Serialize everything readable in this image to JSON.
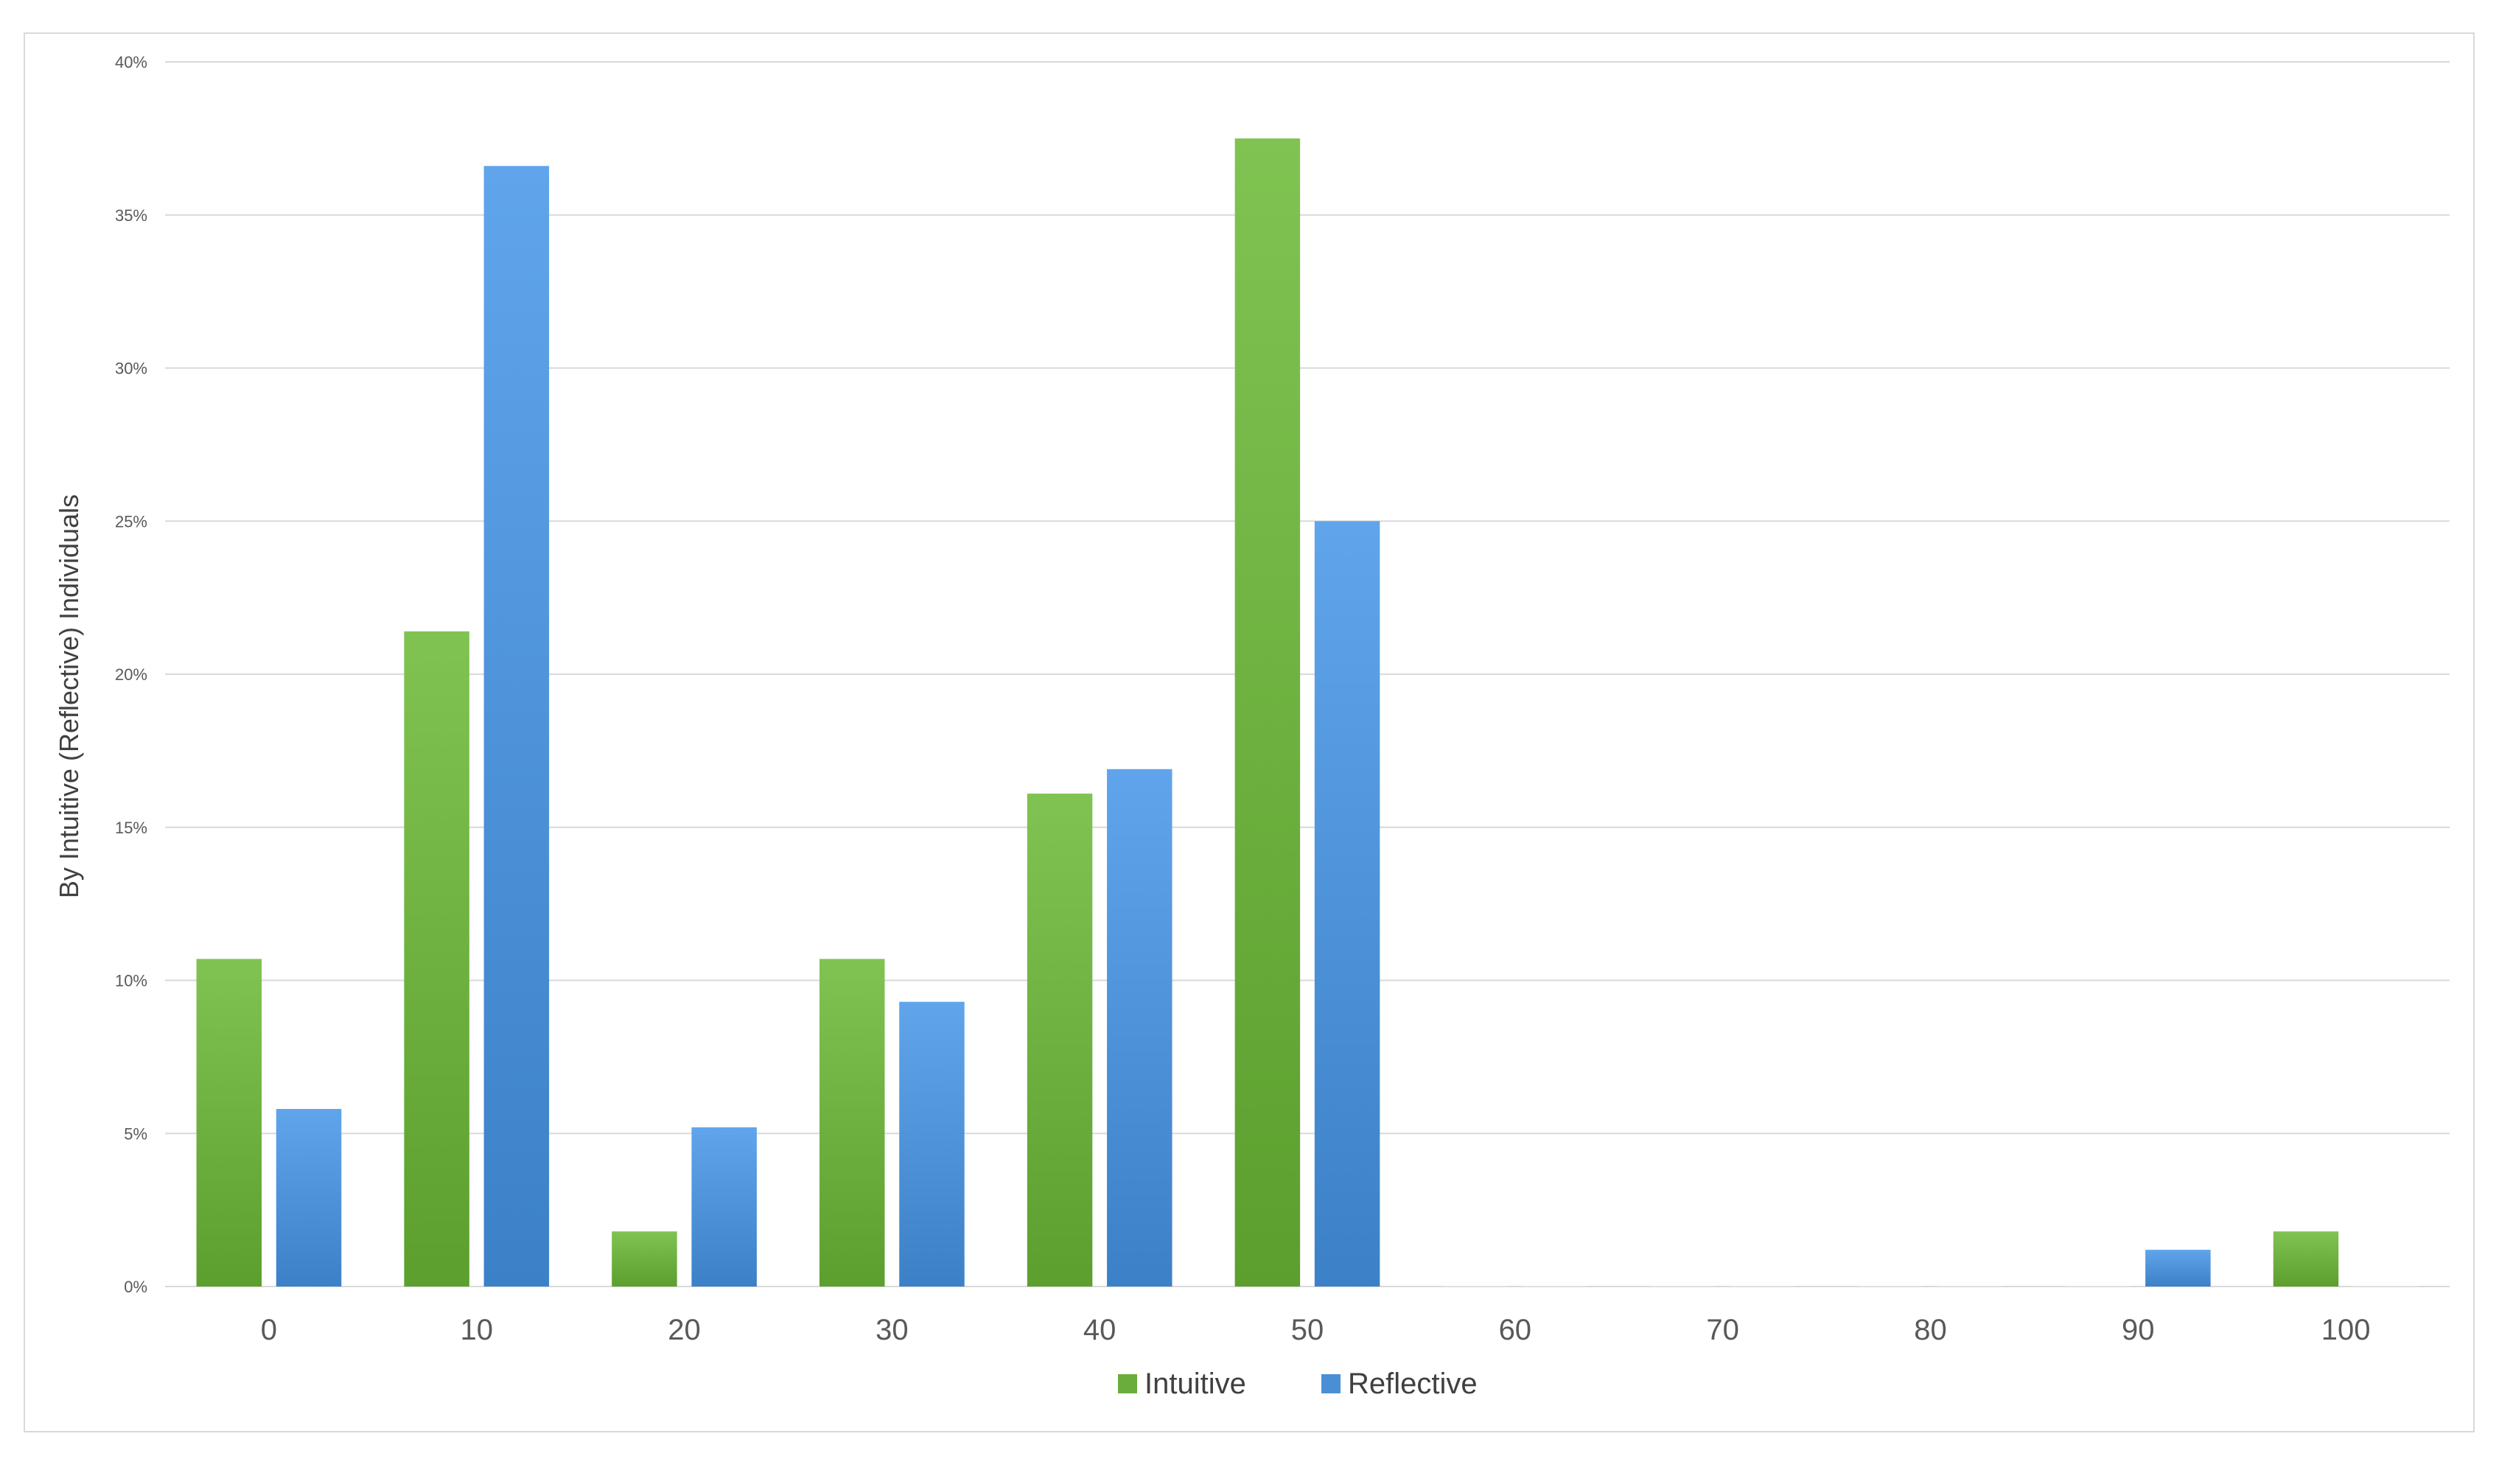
{
  "chart_data": {
    "type": "bar",
    "title": "",
    "xlabel": "",
    "ylabel": "By Intuitive (Reflective) Individuals",
    "categories": [
      "0",
      "10",
      "20",
      "30",
      "40",
      "50",
      "60",
      "70",
      "80",
      "90",
      "100"
    ],
    "series": [
      {
        "name": "Intuitive",
        "color": "#6aad3c",
        "values": [
          10.7,
          21.4,
          1.8,
          10.7,
          16.1,
          37.5,
          0,
          0,
          0,
          0,
          1.8
        ]
      },
      {
        "name": "Reflective",
        "color": "#4a8fd6",
        "values": [
          5.8,
          36.6,
          5.2,
          9.3,
          16.9,
          25.0,
          0,
          0,
          0,
          1.2,
          0
        ]
      }
    ],
    "ylim": [
      0,
      40
    ],
    "yticks": [
      0,
      5,
      10,
      15,
      20,
      25,
      30,
      35,
      40
    ],
    "ytick_labels": [
      "0%",
      "5%",
      "10%",
      "15%",
      "20%",
      "25%",
      "30%",
      "35%",
      "40%"
    ],
    "grid": true,
    "legend_position": "bottom-center"
  }
}
